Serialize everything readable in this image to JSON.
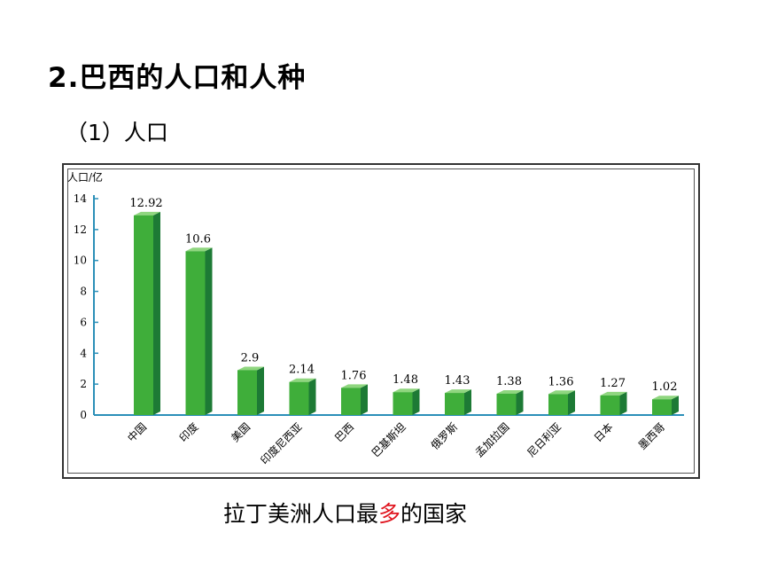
{
  "heading": "2.巴西的人口和人种",
  "subheading": "（1）人口",
  "caption": {
    "before": "拉丁美洲人口最",
    "highlight": "多",
    "after": "的国家"
  },
  "colors": {
    "bar_front": "#3fae3a",
    "bar_side": "#1d7a35",
    "bar_top": "#8fd67f",
    "axis": "#2b8fb8",
    "caption_highlight": "#e0141e"
  },
  "chart_data": {
    "type": "bar",
    "ylabel": "人口/亿",
    "xlabel": "",
    "ylim": [
      0,
      14
    ],
    "yticks": [
      0,
      2,
      4,
      6,
      8,
      10,
      12,
      14
    ],
    "categories": [
      "中国",
      "印度",
      "美国",
      "印度尼西亚",
      "巴西",
      "巴基斯坦",
      "俄罗斯",
      "孟加拉国",
      "尼日利亚",
      "日本",
      "墨西哥"
    ],
    "values": [
      12.92,
      10.6,
      2.9,
      2.14,
      1.76,
      1.48,
      1.43,
      1.38,
      1.36,
      1.27,
      1.02
    ],
    "value_labels": [
      "12.92",
      "10.6",
      "2.9",
      "2.14",
      "1.76",
      "1.48",
      "1.43",
      "1.38",
      "1.36",
      "1.27",
      "1.02"
    ],
    "grid": false,
    "legend": "none"
  }
}
